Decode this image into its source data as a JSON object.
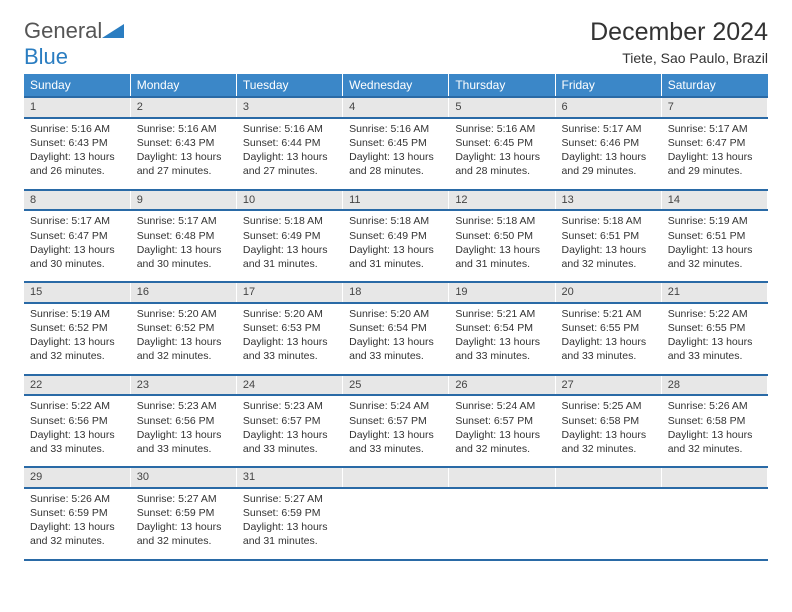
{
  "logo": {
    "word1": "General",
    "word2": "Blue"
  },
  "title": "December 2024",
  "location": "Tiete, Sao Paulo, Brazil",
  "colors": {
    "header_bg": "#3b87c8",
    "header_text": "#ffffff",
    "rule": "#2a6aa6",
    "daynum_bg": "#e7e7e7",
    "text": "#333333",
    "logo_accent": "#2a7dc1",
    "logo_gray": "#555555"
  },
  "day_headers": [
    "Sunday",
    "Monday",
    "Tuesday",
    "Wednesday",
    "Thursday",
    "Friday",
    "Saturday"
  ],
  "weeks": [
    [
      {
        "n": "1",
        "sr": "5:16 AM",
        "ss": "6:43 PM",
        "dl": "13 hours and 26 minutes."
      },
      {
        "n": "2",
        "sr": "5:16 AM",
        "ss": "6:43 PM",
        "dl": "13 hours and 27 minutes."
      },
      {
        "n": "3",
        "sr": "5:16 AM",
        "ss": "6:44 PM",
        "dl": "13 hours and 27 minutes."
      },
      {
        "n": "4",
        "sr": "5:16 AM",
        "ss": "6:45 PM",
        "dl": "13 hours and 28 minutes."
      },
      {
        "n": "5",
        "sr": "5:16 AM",
        "ss": "6:45 PM",
        "dl": "13 hours and 28 minutes."
      },
      {
        "n": "6",
        "sr": "5:17 AM",
        "ss": "6:46 PM",
        "dl": "13 hours and 29 minutes."
      },
      {
        "n": "7",
        "sr": "5:17 AM",
        "ss": "6:47 PM",
        "dl": "13 hours and 29 minutes."
      }
    ],
    [
      {
        "n": "8",
        "sr": "5:17 AM",
        "ss": "6:47 PM",
        "dl": "13 hours and 30 minutes."
      },
      {
        "n": "9",
        "sr": "5:17 AM",
        "ss": "6:48 PM",
        "dl": "13 hours and 30 minutes."
      },
      {
        "n": "10",
        "sr": "5:18 AM",
        "ss": "6:49 PM",
        "dl": "13 hours and 31 minutes."
      },
      {
        "n": "11",
        "sr": "5:18 AM",
        "ss": "6:49 PM",
        "dl": "13 hours and 31 minutes."
      },
      {
        "n": "12",
        "sr": "5:18 AM",
        "ss": "6:50 PM",
        "dl": "13 hours and 31 minutes."
      },
      {
        "n": "13",
        "sr": "5:18 AM",
        "ss": "6:51 PM",
        "dl": "13 hours and 32 minutes."
      },
      {
        "n": "14",
        "sr": "5:19 AM",
        "ss": "6:51 PM",
        "dl": "13 hours and 32 minutes."
      }
    ],
    [
      {
        "n": "15",
        "sr": "5:19 AM",
        "ss": "6:52 PM",
        "dl": "13 hours and 32 minutes."
      },
      {
        "n": "16",
        "sr": "5:20 AM",
        "ss": "6:52 PM",
        "dl": "13 hours and 32 minutes."
      },
      {
        "n": "17",
        "sr": "5:20 AM",
        "ss": "6:53 PM",
        "dl": "13 hours and 33 minutes."
      },
      {
        "n": "18",
        "sr": "5:20 AM",
        "ss": "6:54 PM",
        "dl": "13 hours and 33 minutes."
      },
      {
        "n": "19",
        "sr": "5:21 AM",
        "ss": "6:54 PM",
        "dl": "13 hours and 33 minutes."
      },
      {
        "n": "20",
        "sr": "5:21 AM",
        "ss": "6:55 PM",
        "dl": "13 hours and 33 minutes."
      },
      {
        "n": "21",
        "sr": "5:22 AM",
        "ss": "6:55 PM",
        "dl": "13 hours and 33 minutes."
      }
    ],
    [
      {
        "n": "22",
        "sr": "5:22 AM",
        "ss": "6:56 PM",
        "dl": "13 hours and 33 minutes."
      },
      {
        "n": "23",
        "sr": "5:23 AM",
        "ss": "6:56 PM",
        "dl": "13 hours and 33 minutes."
      },
      {
        "n": "24",
        "sr": "5:23 AM",
        "ss": "6:57 PM",
        "dl": "13 hours and 33 minutes."
      },
      {
        "n": "25",
        "sr": "5:24 AM",
        "ss": "6:57 PM",
        "dl": "13 hours and 33 minutes."
      },
      {
        "n": "26",
        "sr": "5:24 AM",
        "ss": "6:57 PM",
        "dl": "13 hours and 32 minutes."
      },
      {
        "n": "27",
        "sr": "5:25 AM",
        "ss": "6:58 PM",
        "dl": "13 hours and 32 minutes."
      },
      {
        "n": "28",
        "sr": "5:26 AM",
        "ss": "6:58 PM",
        "dl": "13 hours and 32 minutes."
      }
    ],
    [
      {
        "n": "29",
        "sr": "5:26 AM",
        "ss": "6:59 PM",
        "dl": "13 hours and 32 minutes."
      },
      {
        "n": "30",
        "sr": "5:27 AM",
        "ss": "6:59 PM",
        "dl": "13 hours and 32 minutes."
      },
      {
        "n": "31",
        "sr": "5:27 AM",
        "ss": "6:59 PM",
        "dl": "13 hours and 31 minutes."
      },
      null,
      null,
      null,
      null
    ]
  ],
  "labels": {
    "sunrise": "Sunrise:",
    "sunset": "Sunset:",
    "daylight": "Daylight:"
  }
}
